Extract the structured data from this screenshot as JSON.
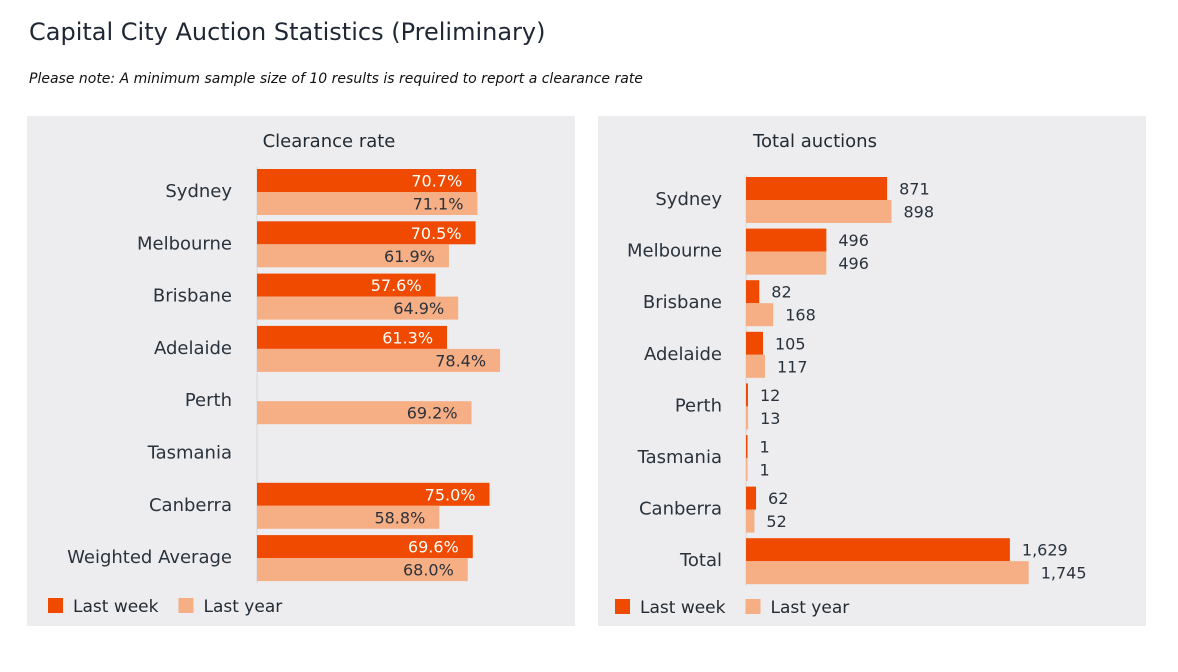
{
  "page": {
    "title": "Capital City Auction Statistics (Preliminary)",
    "note": "Please note: A minimum sample size of 10 results is required to report a clearance rate"
  },
  "colors": {
    "last_week": "#ef4a00",
    "last_year": "#f6ae85",
    "panel_bg": "#ededef"
  },
  "chart_data": [
    {
      "type": "bar",
      "orientation": "horizontal",
      "title": "Clearance rate",
      "categories": [
        "Sydney",
        "Melbourne",
        "Brisbane",
        "Adelaide",
        "Perth",
        "Tasmania",
        "Canberra",
        "Weighted Average"
      ],
      "series": [
        {
          "name": "Last week",
          "values": [
            70.7,
            70.5,
            57.6,
            61.3,
            null,
            null,
            75.0,
            69.6
          ],
          "labels": [
            "70.7%",
            "70.5%",
            "57.6%",
            "61.3%",
            "",
            "",
            "75.0%",
            "69.6%"
          ]
        },
        {
          "name": "Last year",
          "values": [
            71.1,
            61.9,
            64.9,
            78.4,
            69.2,
            null,
            58.8,
            68.0
          ],
          "labels": [
            "71.1%",
            "61.9%",
            "64.9%",
            "78.4%",
            "69.2%",
            "",
            "58.8%",
            "68.0%"
          ]
        }
      ],
      "xlim": [
        0,
        100
      ],
      "label_position": "inside-end",
      "legend_position": "bottom-left",
      "grid": false
    },
    {
      "type": "bar",
      "orientation": "horizontal",
      "title": "Total auctions",
      "categories": [
        "Sydney",
        "Melbourne",
        "Brisbane",
        "Adelaide",
        "Perth",
        "Tasmania",
        "Canberra",
        "Total"
      ],
      "series": [
        {
          "name": "Last week",
          "values": [
            871,
            496,
            82,
            105,
            12,
            1,
            62,
            1629
          ],
          "labels": [
            "871",
            "496",
            "82",
            "105",
            "12",
            "1",
            "62",
            "1,629"
          ]
        },
        {
          "name": "Last year",
          "values": [
            898,
            496,
            168,
            117,
            13,
            1,
            52,
            1745
          ],
          "labels": [
            "898",
            "496",
            "168",
            "117",
            "13",
            "1",
            "52",
            "1,745"
          ]
        }
      ],
      "xlim": [
        0,
        1800
      ],
      "label_position": "outside-end",
      "legend_position": "bottom-left",
      "grid": false
    }
  ]
}
